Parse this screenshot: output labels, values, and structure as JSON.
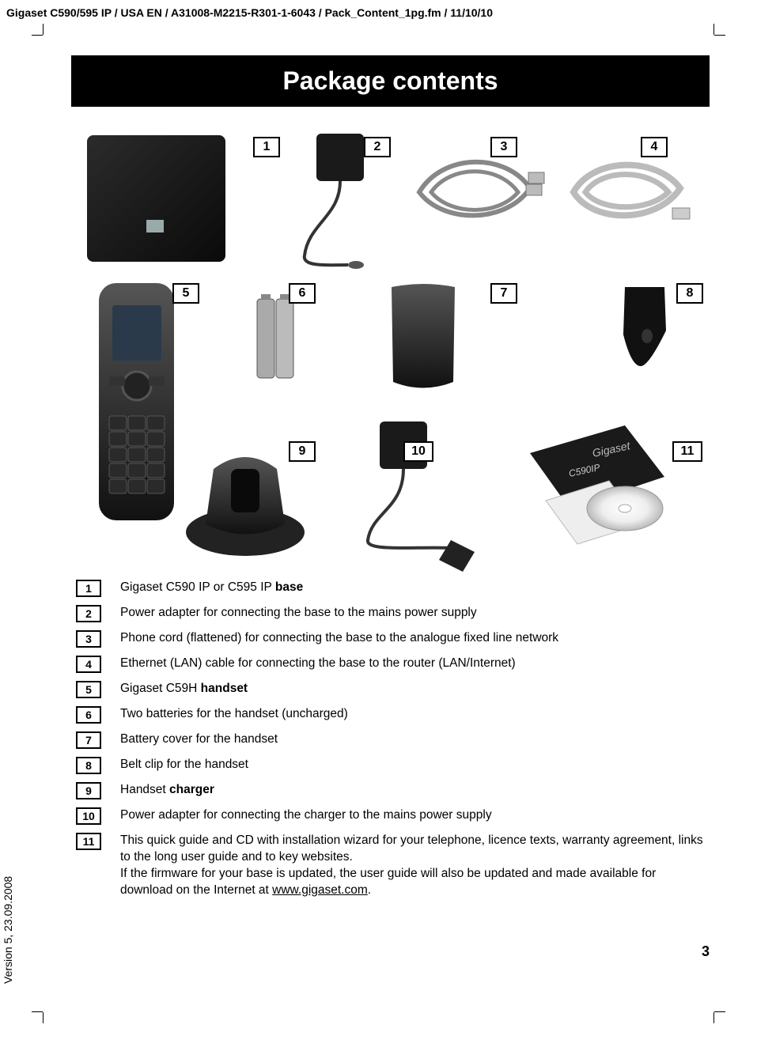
{
  "header": "Gigaset C590/595 IP / USA EN / A31008-M2215-R301-1-6043 / Pack_Content_1pg.fm / 11/10/10",
  "version_sidebar": "Version 5, 23.09.2008",
  "title": "Package contents",
  "page_number": "3",
  "callouts": {
    "n1": "1",
    "n2": "2",
    "n3": "3",
    "n4": "4",
    "n5": "5",
    "n6": "6",
    "n7": "7",
    "n8": "8",
    "n9": "9",
    "n10": "10",
    "n11": "11"
  },
  "legend": [
    {
      "num": "1",
      "html": "Gigaset C590 IP or C595 IP <b>base</b>"
    },
    {
      "num": "2",
      "html": "Power adapter for connecting the base to the mains power supply"
    },
    {
      "num": "3",
      "html": "Phone cord (flattened) for connecting the base to the analogue fixed line network"
    },
    {
      "num": "4",
      "html": "Ethernet (LAN) cable for connecting the base to the router (LAN/Internet)"
    },
    {
      "num": "5",
      "html": "Gigaset C59H <b>handset</b>"
    },
    {
      "num": "6",
      "html": "Two batteries for the handset (uncharged)"
    },
    {
      "num": "7",
      "html": "Battery cover for the handset"
    },
    {
      "num": "8",
      "html": "Belt clip for the handset"
    },
    {
      "num": "9",
      "html": "Handset <b>charger</b>"
    },
    {
      "num": "10",
      "html": "Power adapter for connecting the charger to the mains power supply"
    },
    {
      "num": "11",
      "html": "This quick guide and CD with installation wizard for your telephone, licence texts, warranty agreement, links to the long user guide and to key websites.<br>If the firmware for your base is updated, the user guide will also be updated and made available for download on the Internet at <span class=\"u\">www.gigaset.com</span>."
    }
  ],
  "colors": {
    "title_bg": "#000000",
    "title_fg": "#ffffff",
    "page_bg": "#ffffff",
    "text": "#000000"
  }
}
